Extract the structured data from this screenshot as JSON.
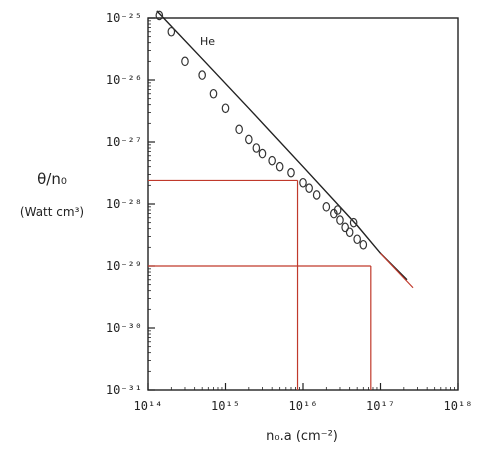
{
  "chart_data": {
    "type": "scatter",
    "title": "",
    "xlabel": "n₀.a  (cm⁻²)",
    "ylabel_line1": "θ/n₀",
    "ylabel_line2": "(Watt cm³)",
    "xscale": "log",
    "yscale": "log",
    "xlim": [
      100000000000000.0,
      1e+18
    ],
    "ylim": [
      1e-31,
      1e-25
    ],
    "grid": false,
    "x_tick_labels": [
      "10¹⁴",
      "10¹⁵",
      "10¹⁶",
      "10¹⁷",
      "10¹⁸"
    ],
    "y_tick_labels": [
      "10⁻³¹",
      "10⁻³⁰",
      "10⁻²⁹",
      "10⁻²⁸",
      "10⁻²⁷",
      "10⁻²⁶",
      "10⁻²⁵"
    ],
    "annotation": "He",
    "series": [
      {
        "kind": "points",
        "points": [
          [
            140000000000000.0,
            1.1e-25
          ],
          [
            200000000000000.0,
            6e-26
          ],
          [
            300000000000000.0,
            2e-26
          ],
          [
            500000000000000.0,
            1.2e-26
          ],
          [
            700000000000000.0,
            6e-27
          ],
          [
            1000000000000000.0,
            3.5e-27
          ],
          [
            1500000000000000.0,
            1.6e-27
          ],
          [
            2000000000000000.0,
            1.1e-27
          ],
          [
            2500000000000000.0,
            8e-28
          ],
          [
            3000000000000000.0,
            6.5e-28
          ],
          [
            4000000000000000.0,
            5e-28
          ],
          [
            5000000000000000.0,
            4e-28
          ],
          [
            7000000000000000.0,
            3.2e-28
          ],
          [
            1e+16,
            2.2e-28
          ],
          [
            1.2e+16,
            1.8e-28
          ],
          [
            1.5e+16,
            1.4e-28
          ],
          [
            2e+16,
            9e-29
          ],
          [
            2.5e+16,
            7e-29
          ],
          [
            3e+16,
            5.5e-29
          ],
          [
            3.5e+16,
            4.2e-29
          ],
          [
            4e+16,
            3.5e-29
          ],
          [
            5e+16,
            2.7e-29
          ],
          [
            6e+16,
            2.2e-29
          ],
          [
            2.8e+16,
            8e-29
          ],
          [
            4.5e+16,
            5e-29
          ]
        ]
      },
      {
        "kind": "fit-line",
        "points": [
          [
            130000000000000.0,
            1.3e-25
          ],
          [
            500000000000000.0,
            2.2e-26
          ],
          [
            2000000000000000.0,
            3.5e-27
          ],
          [
            1e+16,
            4e-28
          ],
          [
            5e+16,
            4.5e-29
          ],
          [
            1e+17,
            1.6e-29
          ],
          [
            2.2e+17,
            6e-30
          ]
        ]
      }
    ],
    "guide_lines": [
      {
        "x": 8500000000000000.0,
        "y": 2.4e-28
      },
      {
        "x": 7.5e+16,
        "y": 1e-29
      }
    ],
    "colors": {
      "axes": "#222222",
      "guides": "#c0392b",
      "points": "#333333"
    }
  }
}
